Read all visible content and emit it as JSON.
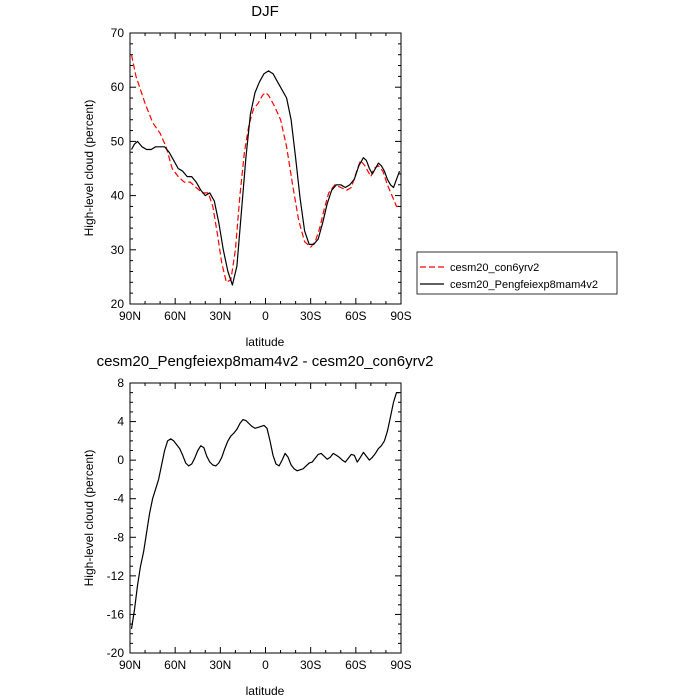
{
  "chart_data": [
    {
      "type": "line",
      "title": "DJF",
      "xlabel": "latitude",
      "ylabel": "High-level cloud (percent)",
      "xlim": [
        90,
        -90
      ],
      "ylim": [
        20,
        70
      ],
      "x_ticks": [
        90,
        60,
        30,
        0,
        -30,
        -60,
        -90
      ],
      "x_tick_labels": [
        "90N",
        "60N",
        "30N",
        "0",
        "30S",
        "60S",
        "90S"
      ],
      "y_ticks": [
        20,
        30,
        40,
        50,
        60,
        70
      ],
      "y_tick_labels": [
        "20",
        "30",
        "40",
        "50",
        "60",
        "70"
      ],
      "legend_position": "right, outside plot",
      "series": [
        {
          "name": "cesm20_con6yrv2",
          "color": "#ff0000",
          "dash": "dashed",
          "x": [
            89,
            86,
            80,
            75,
            70,
            66,
            62,
            58,
            54,
            50,
            46,
            42,
            38,
            35,
            32,
            29,
            26,
            23,
            20,
            17,
            14,
            11,
            8,
            5,
            2,
            0,
            -2,
            -6,
            -10,
            -14,
            -18,
            -22,
            -26,
            -30,
            -33,
            -36,
            -39,
            -42,
            -46,
            -50,
            -54,
            -57,
            -60,
            -63,
            -66,
            -68,
            -70,
            -72,
            -75,
            -78,
            -81,
            -84,
            -87,
            -89
          ],
          "y": [
            66,
            62,
            57,
            53.5,
            51.5,
            49,
            45,
            43.5,
            42.5,
            42.5,
            41.5,
            40.5,
            40.5,
            38,
            33,
            27.5,
            24,
            24.5,
            30,
            40,
            48,
            53,
            56,
            57,
            58.5,
            59,
            58.5,
            56.5,
            54,
            49,
            42,
            35.5,
            31.5,
            30.5,
            31.5,
            34,
            37.5,
            40.5,
            42,
            41.5,
            41,
            41.5,
            44,
            46.5,
            45.5,
            44.5,
            43.5,
            45,
            45.5,
            44.5,
            42,
            40,
            38,
            38
          ]
        },
        {
          "name": "cesm20_Pengfeiexp8mam4v2",
          "color": "#000000",
          "dash": "solid",
          "x": [
            89,
            87,
            85,
            82,
            79,
            76,
            73,
            70,
            67,
            64,
            61,
            58,
            55,
            52,
            49,
            46,
            43,
            40,
            37,
            34,
            31,
            28,
            25,
            22,
            19,
            16,
            13,
            10,
            7,
            4,
            1,
            -2,
            -5,
            -8,
            -11,
            -14,
            -17,
            -20,
            -23,
            -26,
            -29,
            -32,
            -35,
            -38,
            -41,
            -44,
            -47,
            -50,
            -53,
            -56,
            -59,
            -62,
            -65,
            -67,
            -69,
            -71,
            -73,
            -75,
            -77,
            -79,
            -81,
            -83,
            -85,
            -87,
            -89
          ],
          "y": [
            48.5,
            49.5,
            50,
            49,
            48.5,
            48.5,
            49,
            49,
            49,
            48,
            46.5,
            45,
            44.5,
            43.5,
            43.5,
            42.5,
            41,
            40,
            40.5,
            39,
            35,
            30,
            26,
            23.5,
            27,
            37,
            47,
            55,
            59,
            61,
            62.5,
            63,
            62.5,
            61,
            59.5,
            58,
            54,
            47,
            39.5,
            33.5,
            31,
            31,
            32,
            35,
            38.5,
            41,
            42,
            42,
            41.5,
            42,
            43,
            45.5,
            47,
            46.5,
            45,
            44,
            45,
            46,
            45.5,
            44.5,
            43,
            42,
            41.5,
            43,
            44.5
          ]
        }
      ]
    },
    {
      "type": "line",
      "title": "cesm20_Pengfeiexp8mam4v2 - cesm20_con6yrv2",
      "xlabel": "latitude",
      "ylabel": "High-level cloud (percent)",
      "xlim": [
        90,
        -90
      ],
      "ylim": [
        -20,
        8
      ],
      "x_ticks": [
        90,
        60,
        30,
        0,
        -30,
        -60,
        -90
      ],
      "x_tick_labels": [
        "90N",
        "60N",
        "30N",
        "0",
        "30S",
        "60S",
        "90S"
      ],
      "y_ticks": [
        -20,
        -16,
        -12,
        -8,
        -4,
        0,
        4,
        8
      ],
      "y_tick_labels": [
        "-20",
        "-16",
        "-12",
        "-8",
        "-4",
        "0",
        "4",
        "8"
      ],
      "series": [
        {
          "color": "#000000",
          "dash": "solid",
          "x": [
            89,
            87,
            85,
            83,
            81,
            79,
            77,
            75,
            73,
            71,
            69,
            67,
            65,
            63,
            61,
            59,
            57,
            55,
            53,
            51,
            49,
            47,
            45,
            43,
            41,
            39,
            37,
            35,
            33,
            31,
            29,
            27,
            25,
            23,
            21,
            19,
            17,
            15,
            13,
            11,
            9,
            7,
            5,
            3,
            1,
            -1,
            -3,
            -5,
            -7,
            -9,
            -11,
            -13,
            -15,
            -17,
            -19,
            -21,
            -23,
            -25,
            -27,
            -29,
            -31,
            -33,
            -35,
            -37,
            -39,
            -41,
            -43,
            -45,
            -47,
            -49,
            -51,
            -53,
            -55,
            -57,
            -59,
            -61,
            -63,
            -65,
            -67,
            -69,
            -71,
            -73,
            -75,
            -77,
            -79,
            -81,
            -83,
            -85,
            -87,
            -89
          ],
          "y": [
            -17.5,
            -15.5,
            -13,
            -11,
            -9.5,
            -7.5,
            -5.5,
            -4,
            -3,
            -2,
            -0.5,
            1,
            2,
            2.2,
            2,
            1.6,
            1.2,
            0.5,
            -0.3,
            -0.6,
            -0.4,
            0.2,
            1,
            1.5,
            1.3,
            0.4,
            -0.2,
            -0.5,
            -0.6,
            -0.3,
            0.3,
            1.2,
            2,
            2.5,
            2.8,
            3.2,
            3.8,
            4.2,
            4.1,
            3.8,
            3.5,
            3.3,
            3.4,
            3.5,
            3.6,
            3.3,
            2,
            0.5,
            -0.4,
            -0.6,
            0,
            0.7,
            0.3,
            -0.5,
            -0.9,
            -1.1,
            -1,
            -0.9,
            -0.6,
            -0.3,
            -0.2,
            0.2,
            0.6,
            0.7,
            0.4,
            0.1,
            0.3,
            0.7,
            0.5,
            0.3,
            0,
            -0.2,
            0.2,
            0.6,
            0.5,
            -0.2,
            0.3,
            0.8,
            0.4,
            0,
            0.3,
            0.7,
            1.2,
            1.5,
            2,
            3,
            4.5,
            6,
            7,
            7
          ]
        }
      ]
    }
  ]
}
